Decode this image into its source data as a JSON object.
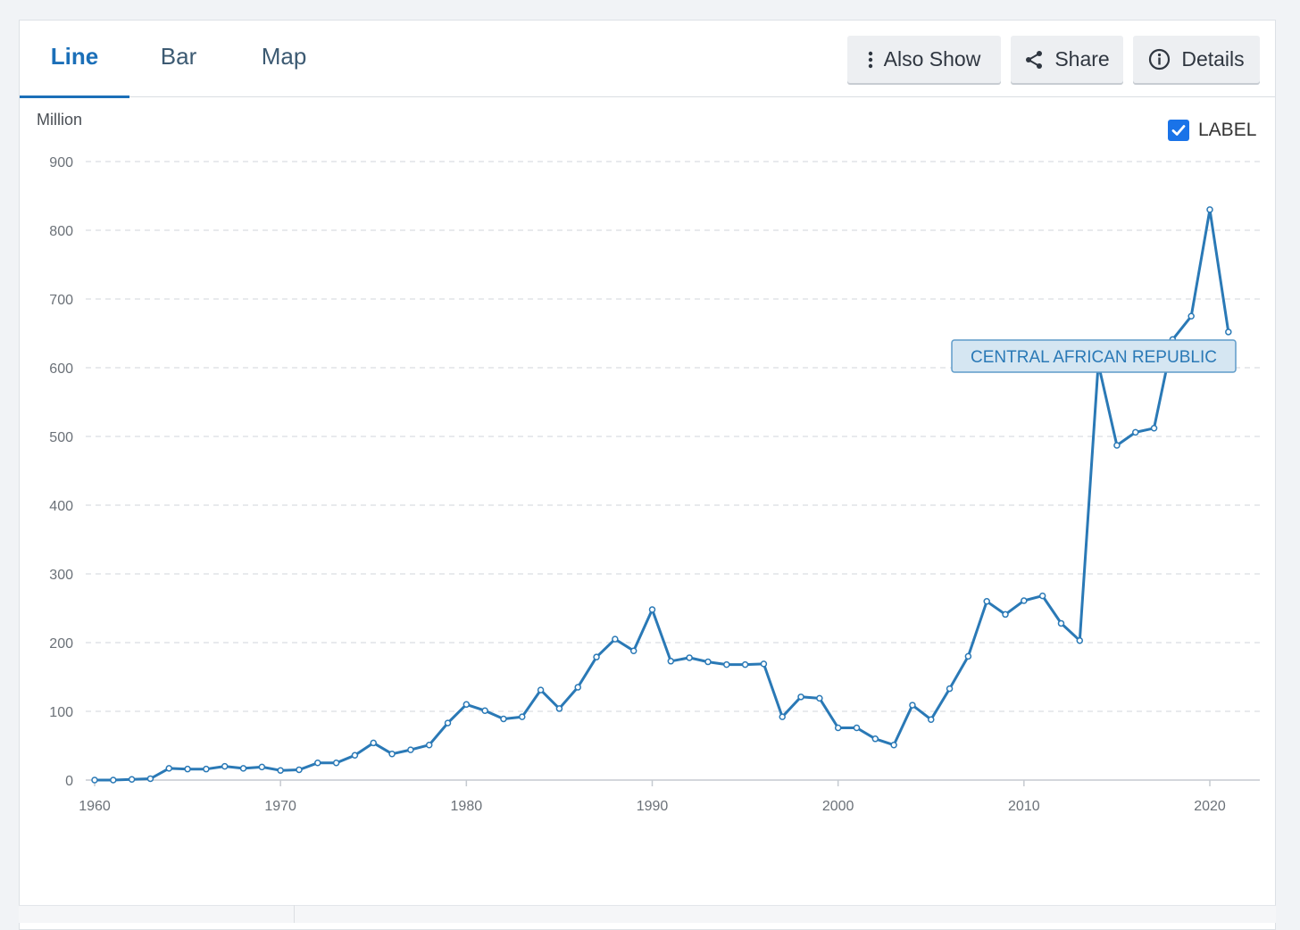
{
  "tabs": [
    {
      "label": "Line",
      "active": true
    },
    {
      "label": "Bar",
      "active": false
    },
    {
      "label": "Map",
      "active": false
    }
  ],
  "toolbar": {
    "also_show_label": "Also Show",
    "share_label": "Share",
    "details_label": "Details"
  },
  "icons": {
    "also_show": "vertical-dots-icon",
    "share": "share-icon",
    "details": "info-icon",
    "label_checkbox": "checkmark-icon"
  },
  "label_toggle": {
    "label": "LABEL",
    "checked": true
  },
  "colors": {
    "accent": "#1b6fb8",
    "series": "#2a79b6",
    "annotation_bg": "#d5e6f2",
    "annotation_border": "#5f9cc9"
  },
  "chart_data": {
    "type": "line",
    "ylabel": "Million",
    "ylim": [
      0,
      900
    ],
    "yticks": [
      0,
      100,
      200,
      300,
      400,
      500,
      600,
      700,
      800,
      900
    ],
    "xlim": [
      1960,
      2021
    ],
    "xticks": [
      1960,
      1970,
      1980,
      1990,
      2000,
      2010,
      2020
    ],
    "grid": true,
    "series": [
      {
        "name": "CENTRAL AFRICAN REPUBLIC",
        "x": [
          1960,
          1961,
          1962,
          1963,
          1964,
          1965,
          1966,
          1967,
          1968,
          1969,
          1970,
          1971,
          1972,
          1973,
          1974,
          1975,
          1976,
          1977,
          1978,
          1979,
          1980,
          1981,
          1982,
          1983,
          1984,
          1985,
          1986,
          1987,
          1988,
          1989,
          1990,
          1991,
          1992,
          1993,
          1994,
          1995,
          1996,
          1997,
          1998,
          1999,
          2000,
          2001,
          2002,
          2003,
          2004,
          2005,
          2006,
          2007,
          2008,
          2009,
          2010,
          2011,
          2012,
          2013,
          2014,
          2015,
          2016,
          2017,
          2018,
          2019,
          2020,
          2021
        ],
        "values": [
          0,
          0,
          1,
          2,
          17,
          16,
          16,
          20,
          17,
          19,
          14,
          15,
          25,
          25,
          36,
          54,
          38,
          44,
          51,
          83,
          110,
          101,
          89,
          92,
          131,
          104,
          135,
          179,
          205,
          188,
          248,
          173,
          178,
          172,
          168,
          168,
          169,
          92,
          121,
          119,
          76,
          76,
          60,
          51,
          109,
          88,
          133,
          180,
          260,
          241,
          261,
          268,
          228,
          203,
          606,
          487,
          506,
          512,
          641,
          675,
          830,
          652
        ]
      }
    ],
    "annotation": {
      "text": "CENTRAL AFRICAN REPUBLIC",
      "x": 2014.5,
      "y": 620
    }
  }
}
